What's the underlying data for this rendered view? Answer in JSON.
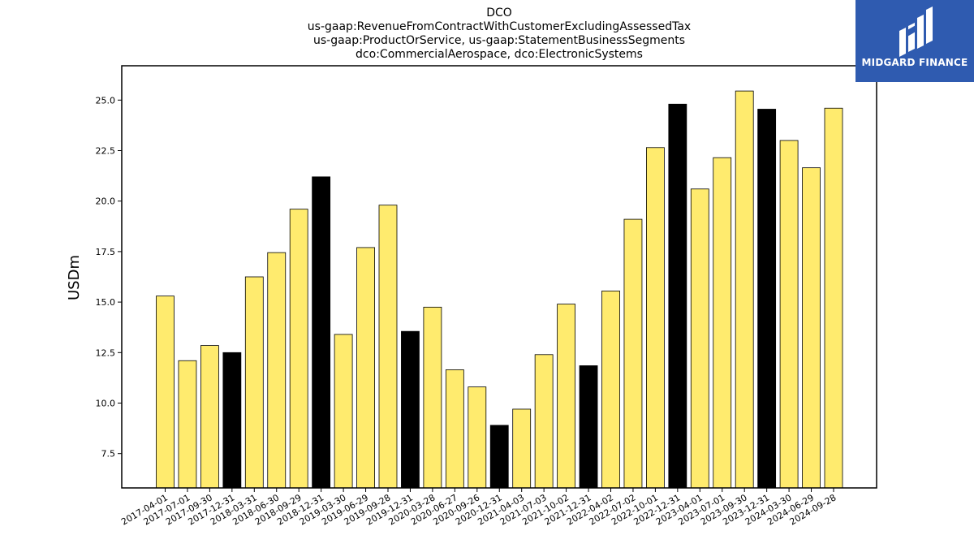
{
  "chart_data": {
    "type": "bar",
    "title": [
      "DCO",
      "us-gaap:RevenueFromContractWithCustomerExcludingAssessedTax",
      "us-gaap:ProductOrService, us-gaap:StatementBusinessSegments",
      "dco:CommercialAerospace, dco:ElectronicSystems"
    ],
    "xlabel": "",
    "ylabel": "USDm",
    "ylim": [
      5.8,
      26.7
    ],
    "yticks": [
      7.5,
      10.0,
      12.5,
      15.0,
      17.5,
      20.0,
      22.5,
      25.0
    ],
    "grid": false,
    "colors": {
      "normal": "#ffeb6e",
      "year_end": "#000000",
      "edge": "#000000"
    },
    "categories": [
      "2017-04-01",
      "2017-07-01",
      "2017-09-30",
      "2017-12-31",
      "2018-03-31",
      "2018-06-30",
      "2018-09-29",
      "2018-12-31",
      "2019-03-30",
      "2019-06-29",
      "2019-09-28",
      "2019-12-31",
      "2020-03-28",
      "2020-06-27",
      "2020-09-26",
      "2020-12-31",
      "2021-04-03",
      "2021-07-03",
      "2021-10-02",
      "2021-12-31",
      "2022-04-02",
      "2022-07-02",
      "2022-10-01",
      "2022-12-31",
      "2023-04-01",
      "2023-07-01",
      "2023-09-30",
      "2023-12-31",
      "2024-03-30",
      "2024-06-29",
      "2024-09-28"
    ],
    "values": [
      15.3,
      12.1,
      12.85,
      12.5,
      16.25,
      17.45,
      19.6,
      21.2,
      13.4,
      17.7,
      19.8,
      13.55,
      14.75,
      11.65,
      10.8,
      8.9,
      9.7,
      12.4,
      14.9,
      11.85,
      15.55,
      19.1,
      22.65,
      24.8,
      20.6,
      22.15,
      25.45,
      24.55,
      23.0,
      21.65,
      24.6
    ],
    "highlight": [
      false,
      false,
      false,
      true,
      false,
      false,
      false,
      true,
      false,
      false,
      false,
      true,
      false,
      false,
      false,
      true,
      false,
      false,
      false,
      true,
      false,
      false,
      false,
      true,
      false,
      false,
      false,
      true,
      false,
      false,
      false
    ]
  },
  "logo": {
    "text": "MIDGARD FINANCE"
  }
}
